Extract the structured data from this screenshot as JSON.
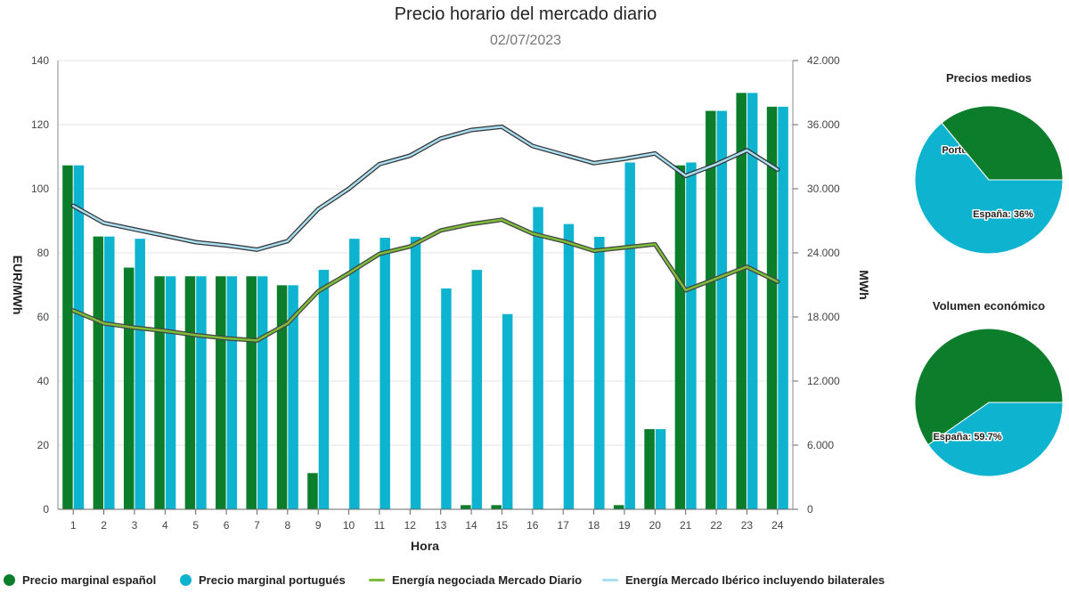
{
  "header": {
    "title": "Precio horario del mercado diario",
    "date": "02/07/2023"
  },
  "colors": {
    "spain": "#0b7d2b",
    "portugal": "#0eb4cf",
    "energy_md": "#7dbd3a",
    "energy_md_shadow": "#444444",
    "energy_mi": "#a9def0",
    "energy_mi_shadow": "#333333"
  },
  "chart_data": [
    {
      "type": "bar",
      "x_label": "Hora",
      "y_left_label": "EUR/MWh",
      "y_right_label": "MWh",
      "categories": [
        "1",
        "2",
        "3",
        "4",
        "5",
        "6",
        "7",
        "8",
        "9",
        "10",
        "11",
        "12",
        "13",
        "14",
        "15",
        "16",
        "17",
        "18",
        "19",
        "20",
        "21",
        "22",
        "23",
        "24"
      ],
      "y_left_range": [
        0,
        140
      ],
      "y_left_ticks": [
        "0",
        "20",
        "40",
        "60",
        "80",
        "100",
        "120",
        "140"
      ],
      "y_right_range": [
        0,
        42000
      ],
      "y_right_ticks": [
        "0",
        "6.000",
        "12.000",
        "18.000",
        "24.000",
        "30.000",
        "36.000",
        "42.000"
      ],
      "grid": true,
      "series": [
        {
          "name": "Precio marginal español",
          "type": "bar",
          "axis": "left",
          "values": [
            107.3,
            85.1,
            75.4,
            72.7,
            72.7,
            72.7,
            72.7,
            69.9,
            11.3,
            0,
            0,
            0,
            0,
            1.3,
            1.3,
            0,
            0,
            0,
            1.3,
            25.0,
            107.3,
            124.3,
            129.9,
            125.6
          ]
        },
        {
          "name": "Precio marginal portugués",
          "type": "bar",
          "axis": "left",
          "values": [
            107.3,
            85.1,
            84.4,
            72.7,
            72.7,
            72.7,
            72.7,
            69.9,
            74.7,
            84.4,
            84.7,
            85.0,
            68.9,
            74.7,
            60.9,
            94.3,
            89.0,
            85.0,
            108.2,
            25.0,
            108.2,
            124.3,
            129.9,
            125.6
          ]
        },
        {
          "name": "Energía negociada Mercado Diario",
          "type": "line",
          "axis": "right",
          "values": [
            18600,
            17400,
            17000,
            16700,
            16300,
            16000,
            15800,
            17400,
            20400,
            22100,
            23900,
            24600,
            26100,
            26700,
            27100,
            25800,
            25100,
            24200,
            24500,
            24800,
            20500,
            21600,
            22700,
            21300
          ]
        },
        {
          "name": "Energía Mercado Ibérico incluyendo bilaterales",
          "type": "line",
          "axis": "right",
          "values": [
            28400,
            26800,
            26200,
            25600,
            25000,
            24700,
            24300,
            25100,
            28100,
            30000,
            32300,
            33100,
            34700,
            35500,
            35800,
            34000,
            33200,
            32400,
            32800,
            33300,
            31200,
            32300,
            33600,
            31800
          ]
        }
      ]
    },
    {
      "type": "pie",
      "title": "Precios medios",
      "slices": [
        {
          "label": "Portugal: 64%",
          "value": 64,
          "color": "#0eb4cf"
        },
        {
          "label": "España: 36%",
          "value": 36,
          "color": "#0b7d2b"
        }
      ]
    },
    {
      "type": "pie",
      "title": "Volumen económico",
      "slices": [
        {
          "label": "Portugal: 40.3%",
          "value": 40.3,
          "color": "#0eb4cf"
        },
        {
          "label": "España: 59.7%",
          "value": 59.7,
          "color": "#0b7d2b"
        }
      ]
    }
  ]
}
